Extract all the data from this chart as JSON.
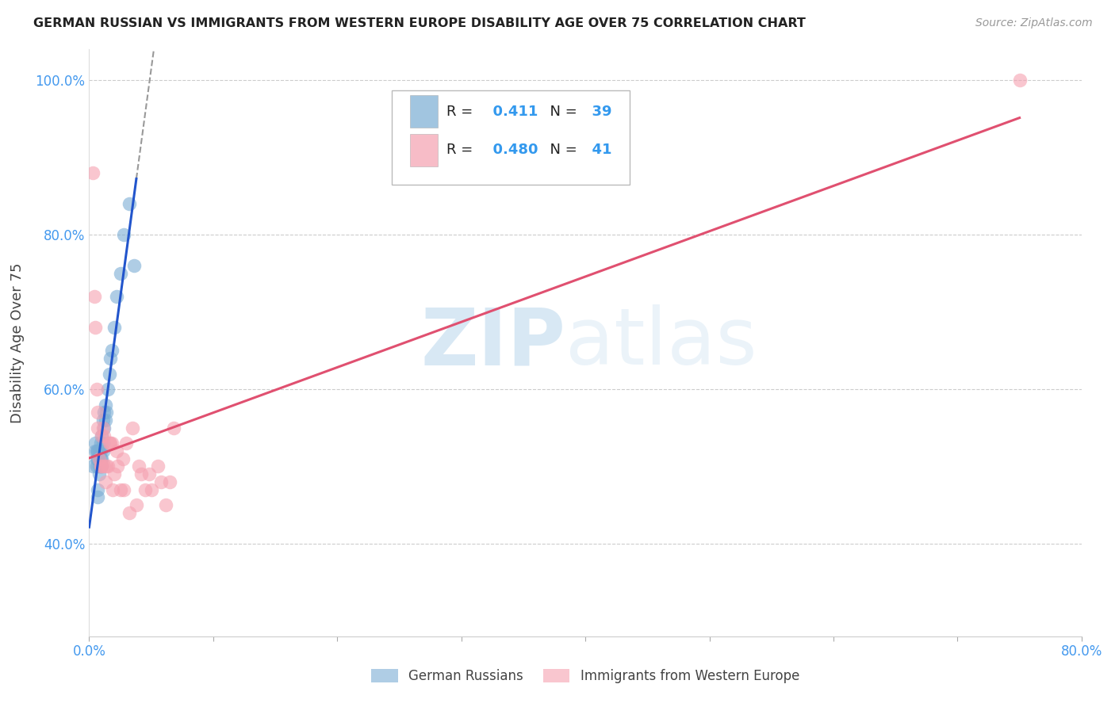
{
  "title": "GERMAN RUSSIAN VS IMMIGRANTS FROM WESTERN EUROPE DISABILITY AGE OVER 75 CORRELATION CHART",
  "source": "Source: ZipAtlas.com",
  "ylabel": "Disability Age Over 75",
  "x_min": 0.0,
  "x_max": 0.8,
  "y_min": 0.28,
  "y_max": 1.04,
  "yticks": [
    0.4,
    0.6,
    0.8,
    1.0
  ],
  "ytick_labels": [
    "40.0%",
    "60.0%",
    "80.0%",
    "100.0%"
  ],
  "xtick_positions": [
    0.0,
    0.1,
    0.2,
    0.3,
    0.4,
    0.5,
    0.6,
    0.7,
    0.8
  ],
  "grid_color": "#cccccc",
  "background_color": "#ffffff",
  "blue_color": "#7aadd4",
  "pink_color": "#f5a0b0",
  "blue_line_color": "#2255cc",
  "pink_line_color": "#e05070",
  "blue_R": 0.411,
  "blue_N": 39,
  "pink_R": 0.48,
  "pink_N": 41,
  "legend_label_blue": "German Russians",
  "legend_label_pink": "Immigrants from Western Europe",
  "watermark_zip": "ZIP",
  "watermark_atlas": "atlas",
  "blue_points_x": [
    0.003,
    0.005,
    0.005,
    0.006,
    0.006,
    0.006,
    0.007,
    0.007,
    0.007,
    0.007,
    0.008,
    0.008,
    0.008,
    0.008,
    0.009,
    0.009,
    0.009,
    0.009,
    0.01,
    0.01,
    0.01,
    0.011,
    0.011,
    0.011,
    0.012,
    0.012,
    0.013,
    0.013,
    0.014,
    0.015,
    0.016,
    0.017,
    0.018,
    0.02,
    0.022,
    0.025,
    0.028,
    0.032,
    0.036
  ],
  "blue_points_y": [
    0.5,
    0.52,
    0.53,
    0.5,
    0.51,
    0.52,
    0.46,
    0.47,
    0.51,
    0.52,
    0.49,
    0.5,
    0.51,
    0.52,
    0.5,
    0.51,
    0.52,
    0.53,
    0.5,
    0.51,
    0.54,
    0.52,
    0.53,
    0.56,
    0.55,
    0.57,
    0.56,
    0.58,
    0.57,
    0.6,
    0.62,
    0.64,
    0.65,
    0.68,
    0.72,
    0.75,
    0.8,
    0.84,
    0.76
  ],
  "pink_points_x": [
    0.003,
    0.004,
    0.005,
    0.006,
    0.007,
    0.007,
    0.008,
    0.009,
    0.01,
    0.01,
    0.011,
    0.012,
    0.012,
    0.013,
    0.014,
    0.015,
    0.016,
    0.017,
    0.018,
    0.019,
    0.02,
    0.022,
    0.023,
    0.025,
    0.027,
    0.028,
    0.03,
    0.032,
    0.035,
    0.038,
    0.04,
    0.042,
    0.045,
    0.048,
    0.05,
    0.055,
    0.058,
    0.062,
    0.065,
    0.068,
    0.75
  ],
  "pink_points_y": [
    0.88,
    0.72,
    0.68,
    0.6,
    0.55,
    0.57,
    0.51,
    0.5,
    0.5,
    0.54,
    0.55,
    0.5,
    0.54,
    0.48,
    0.5,
    0.5,
    0.53,
    0.53,
    0.53,
    0.47,
    0.49,
    0.52,
    0.5,
    0.47,
    0.51,
    0.47,
    0.53,
    0.44,
    0.55,
    0.45,
    0.5,
    0.49,
    0.47,
    0.49,
    0.47,
    0.5,
    0.48,
    0.45,
    0.48,
    0.55,
    1.0
  ]
}
